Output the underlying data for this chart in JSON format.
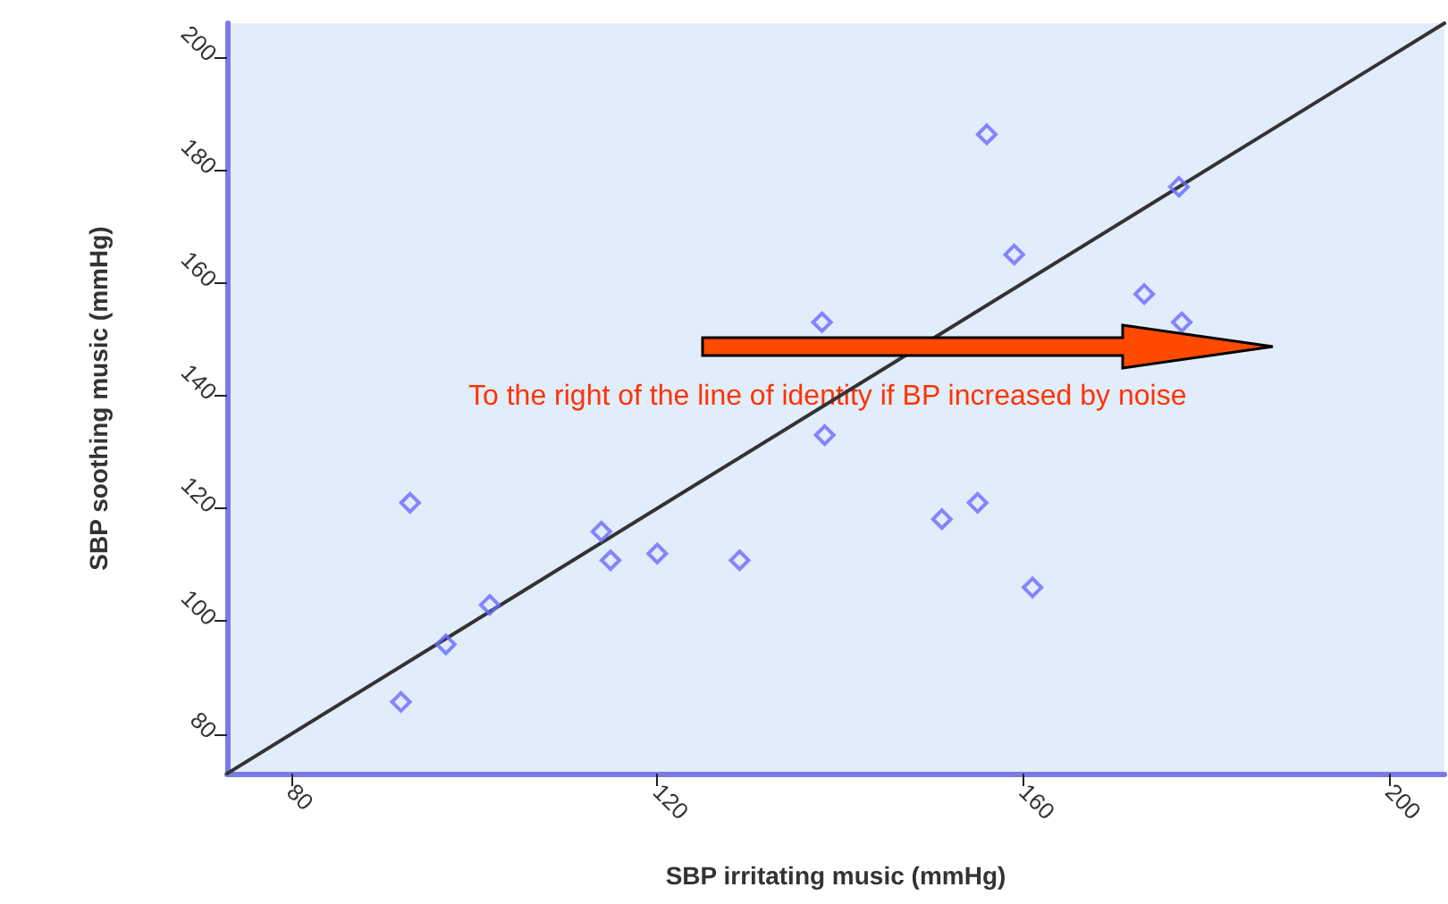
{
  "chart_data": {
    "type": "scatter",
    "xlabel": "SBP irritating music (mmHg)",
    "ylabel": "SBP soothing music (mmHg)",
    "annotations": [
      "To the right of the line of identity if BP increased by noise"
    ],
    "xlim": [
      73,
      206
    ],
    "ylim": [
      73,
      206
    ],
    "xticks": [
      80,
      120,
      160,
      200
    ],
    "yticks": [
      80,
      100,
      120,
      140,
      160,
      180,
      200
    ],
    "grid": false,
    "marker": "diamond",
    "series": [
      {
        "color": "#6a6aff",
        "x": [
          92,
          96.9,
          101.7,
          93,
          113.9,
          114.9,
          120,
          129,
          138.3,
          138,
          156,
          159,
          151.1,
          155,
          161,
          173.2,
          177,
          177.3
        ],
        "values": [
          85.7,
          95.9,
          102.9,
          121,
          115.9,
          110.8,
          112,
          110.8,
          133,
          153,
          186.3,
          165,
          118.1,
          121,
          106,
          158,
          177,
          153
        ]
      },
      {
        "type": "line",
        "color": "#333333",
        "marker": "none",
        "line_style": "solid",
        "x": [
          73,
          206
        ],
        "values": [
          73,
          206
        ]
      }
    ]
  }
}
